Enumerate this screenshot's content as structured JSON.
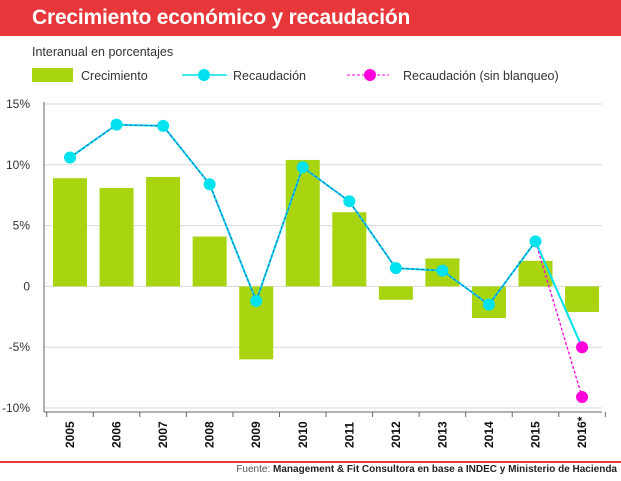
{
  "header": {
    "title": "Crecimiento económico y recaudación"
  },
  "source": {
    "prefix": "Fuente:",
    "text": "Management & Fit Consultora en base a INDEC y Ministerio de Hacienda"
  },
  "colors": {
    "title_bar": "#e8373a",
    "bars": "#a8d410",
    "recaudacion": "#00e2ee",
    "recaudacion_dash": "#3a5cc0",
    "sin_blanqueo": "#ff00dd"
  },
  "chart_data": {
    "type": "bar",
    "subtitle": "Interanual en porcentajes",
    "categories": [
      "2005",
      "2006",
      "2007",
      "2008",
      "2009",
      "2010",
      "2011",
      "2012",
      "2013",
      "2014",
      "2015",
      "2016*"
    ],
    "ylim": [
      -10,
      15
    ],
    "yticks": [
      {
        "value": 15,
        "label": "15%"
      },
      {
        "value": 10,
        "label": "10%"
      },
      {
        "value": 5,
        "label": "5%"
      },
      {
        "value": 0,
        "label": "0"
      },
      {
        "value": -5,
        "label": "-5%"
      },
      {
        "value": -10,
        "label": "-10%"
      }
    ],
    "grid": true,
    "legend_position": "top",
    "series": [
      {
        "name": "Crecimiento",
        "type": "bar",
        "values": [
          8.9,
          8.1,
          9.0,
          4.1,
          -6.0,
          10.4,
          6.1,
          -1.1,
          2.3,
          -2.6,
          2.1,
          -2.1
        ]
      },
      {
        "name": "Recaudación",
        "type": "line",
        "values": [
          10.6,
          13.3,
          13.2,
          8.4,
          -1.2,
          9.8,
          7.0,
          1.5,
          1.3,
          -1.5,
          3.7,
          -5.0
        ]
      },
      {
        "name": "Recaudación (sin blanqueo)",
        "type": "line",
        "values": [
          null,
          null,
          null,
          null,
          null,
          null,
          null,
          null,
          null,
          null,
          3.7,
          -9.1
        ]
      }
    ]
  }
}
